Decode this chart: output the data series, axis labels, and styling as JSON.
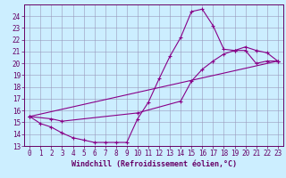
{
  "xlabel": "Windchill (Refroidissement éolien,°C)",
  "bg_color": "#cceeff",
  "line_color": "#880088",
  "xlim": [
    -0.5,
    23.5
  ],
  "ylim": [
    13,
    25
  ],
  "yticks": [
    13,
    14,
    15,
    16,
    17,
    18,
    19,
    20,
    21,
    22,
    23,
    24
  ],
  "xticks": [
    0,
    1,
    2,
    3,
    4,
    5,
    6,
    7,
    8,
    9,
    10,
    11,
    12,
    13,
    14,
    15,
    16,
    17,
    18,
    19,
    20,
    21,
    22,
    23
  ],
  "series1_x": [
    0,
    1,
    2,
    3,
    4,
    5,
    6,
    7,
    8,
    9,
    10,
    11,
    12,
    13,
    14,
    15,
    16,
    17,
    18,
    19,
    20,
    21,
    22,
    23
  ],
  "series1_y": [
    15.5,
    14.9,
    14.6,
    14.1,
    13.7,
    13.5,
    13.3,
    13.3,
    13.3,
    13.3,
    15.3,
    16.7,
    18.7,
    20.6,
    22.2,
    24.4,
    24.6,
    23.2,
    21.2,
    21.1,
    21.1,
    20.0,
    20.2,
    20.2
  ],
  "series2_x": [
    0,
    2,
    3,
    10,
    14,
    15,
    16,
    17,
    18,
    19,
    20,
    21,
    22,
    23
  ],
  "series2_y": [
    15.5,
    15.3,
    15.1,
    15.8,
    16.8,
    18.5,
    19.5,
    20.2,
    20.8,
    21.1,
    21.4,
    21.1,
    20.9,
    20.2
  ],
  "series3_x": [
    0,
    23
  ],
  "series3_y": [
    15.5,
    20.2
  ],
  "tick_color": "#660066",
  "xlabel_fontsize": 6.0,
  "tick_fontsize": 5.5
}
